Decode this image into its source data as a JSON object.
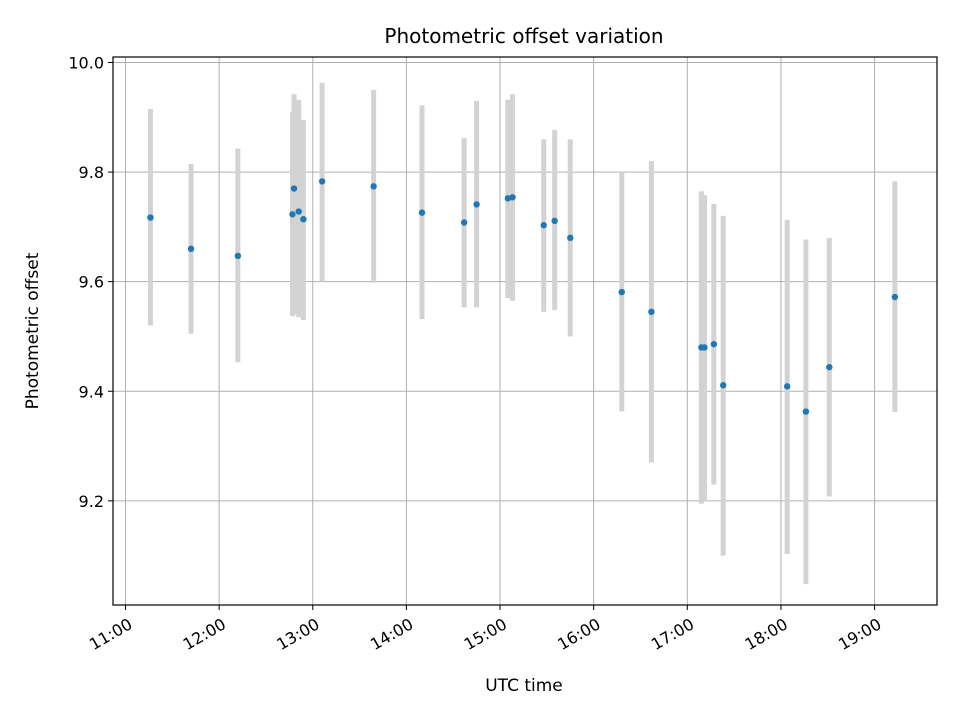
{
  "chart_data": {
    "type": "scatter",
    "title": "Photometric offset variation",
    "xlabel": "UTC time",
    "ylabel": "Photometric offset",
    "grid": true,
    "colors": {
      "marker": "#1f77b4",
      "errorbar": "#d3d3d3",
      "grid": "#b0b0b0"
    },
    "x_ticks": [
      "11:00",
      "12:00",
      "13:00",
      "14:00",
      "15:00",
      "16:00",
      "17:00",
      "18:00",
      "19:00"
    ],
    "y_ticks": [
      "9.2",
      "9.4",
      "9.6",
      "9.8",
      "10.0"
    ],
    "xlim": [
      "10:52",
      "19:40"
    ],
    "ylim": [
      9.01,
      10.01
    ],
    "points": [
      {
        "x": "11:16",
        "y": 9.717,
        "low": 9.52,
        "high": 9.915
      },
      {
        "x": "11:42",
        "y": 9.66,
        "low": 9.505,
        "high": 9.815
      },
      {
        "x": "12:12",
        "y": 9.647,
        "low": 9.453,
        "high": 9.843
      },
      {
        "x": "12:47",
        "y": 9.723,
        "low": 9.537,
        "high": 9.91
      },
      {
        "x": "12:48",
        "y": 9.77,
        "low": 9.54,
        "high": 9.942
      },
      {
        "x": "12:51",
        "y": 9.728,
        "low": 9.535,
        "high": 9.932
      },
      {
        "x": "12:54",
        "y": 9.714,
        "low": 9.53,
        "high": 9.895
      },
      {
        "x": "13:06",
        "y": 9.783,
        "low": 9.6,
        "high": 9.963
      },
      {
        "x": "13:39",
        "y": 9.774,
        "low": 9.598,
        "high": 9.95
      },
      {
        "x": "14:10",
        "y": 9.726,
        "low": 9.532,
        "high": 9.922
      },
      {
        "x": "14:37",
        "y": 9.708,
        "low": 9.553,
        "high": 9.862
      },
      {
        "x": "14:45",
        "y": 9.741,
        "low": 9.553,
        "high": 9.93
      },
      {
        "x": "15:05",
        "y": 9.752,
        "low": 9.57,
        "high": 9.932
      },
      {
        "x": "15:08",
        "y": 9.754,
        "low": 9.565,
        "high": 9.942
      },
      {
        "x": "15:28",
        "y": 9.703,
        "low": 9.545,
        "high": 9.86
      },
      {
        "x": "15:35",
        "y": 9.711,
        "low": 9.548,
        "high": 9.877
      },
      {
        "x": "15:45",
        "y": 9.68,
        "low": 9.5,
        "high": 9.86
      },
      {
        "x": "16:18",
        "y": 9.581,
        "low": 9.363,
        "high": 9.8
      },
      {
        "x": "16:37",
        "y": 9.545,
        "low": 9.27,
        "high": 9.82
      },
      {
        "x": "17:09",
        "y": 9.48,
        "low": 9.195,
        "high": 9.765
      },
      {
        "x": "17:11",
        "y": 9.48,
        "low": 9.2,
        "high": 9.758
      },
      {
        "x": "17:17",
        "y": 9.486,
        "low": 9.23,
        "high": 9.742
      },
      {
        "x": "17:23",
        "y": 9.411,
        "low": 9.1,
        "high": 9.72
      },
      {
        "x": "18:04",
        "y": 9.409,
        "low": 9.103,
        "high": 9.713
      },
      {
        "x": "18:16",
        "y": 9.363,
        "low": 9.048,
        "high": 9.677
      },
      {
        "x": "18:31",
        "y": 9.444,
        "low": 9.208,
        "high": 9.68
      },
      {
        "x": "19:13",
        "y": 9.572,
        "low": 9.362,
        "high": 9.783
      }
    ]
  }
}
